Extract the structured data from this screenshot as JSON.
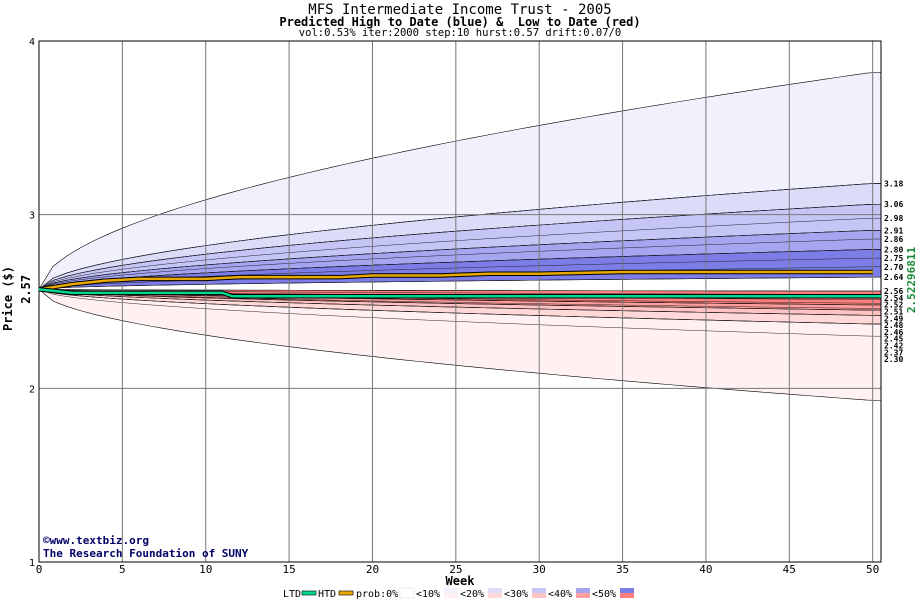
{
  "chart_data": {
    "type": "area",
    "title": "MFS Intermediate Income Trust - 2005",
    "subtitle": "Predicted High to Date (blue) &  Low to Date (red)",
    "params": "vol:0.53% iter:2000 step:10 hurst:0.57 drift:0.07/0",
    "xlabel": "Week",
    "ylabel": "Price ($)",
    "xlim": [
      0,
      50.5
    ],
    "ylim": [
      1,
      4
    ],
    "x_ticks": [
      0,
      5,
      10,
      15,
      20,
      25,
      30,
      35,
      40,
      45,
      50
    ],
    "y_ticks": [
      1,
      2,
      3,
      4
    ],
    "grid": true,
    "start_price": 2.57,
    "start_price_label": "2.57",
    "right_axis_label": "2.52296811",
    "high_band_labels": [
      "3.18",
      "3.06",
      "2.98",
      "2.91",
      "2.86",
      "2.80",
      "2.75",
      "2.70",
      "2.64"
    ],
    "low_band_labels": [
      "2.56",
      "2.54",
      "2.52",
      "2.51",
      "2.49",
      "2.48",
      "2.46",
      "2.45",
      "2.42",
      "2.37",
      "2.30"
    ],
    "band_colors": {
      "high": [
        "#f1f1fd",
        "#dcdcf8",
        "#c6c6f6",
        "#a5a5f0",
        "#7d7de8"
      ],
      "low": [
        "#fff1f1",
        "#ffd9d9",
        "#ffc3c3",
        "#ff9f9f",
        "#ff7f7f"
      ]
    },
    "series": [
      {
        "name": "HTD",
        "color": "#e8a800",
        "x": [
          0,
          2,
          4,
          6,
          8,
          10,
          12,
          14,
          16,
          18,
          20,
          22,
          24,
          27,
          30,
          35,
          40,
          45,
          50
        ],
        "y": [
          2.57,
          2.6,
          2.62,
          2.63,
          2.63,
          2.63,
          2.64,
          2.64,
          2.64,
          2.64,
          2.65,
          2.65,
          2.65,
          2.66,
          2.66,
          2.67,
          2.67,
          2.67,
          2.67
        ]
      },
      {
        "name": "LTD",
        "color": "#00d890",
        "x": [
          0,
          2,
          5,
          8,
          10,
          11,
          11.6,
          12,
          20,
          30,
          40,
          50.5
        ],
        "y": [
          2.57,
          2.55,
          2.55,
          2.55,
          2.55,
          2.55,
          2.53,
          2.53,
          2.53,
          2.53,
          2.53,
          2.53
        ]
      }
    ],
    "legend_placement": "bottom",
    "legend": [
      "LTD",
      "HTD",
      "prob:0%",
      "<10%",
      "<20%",
      "<30%",
      "<40%",
      "<50%"
    ],
    "credits": [
      "©www.textbiz.org",
      "The Research Foundation of SUNY"
    ]
  }
}
